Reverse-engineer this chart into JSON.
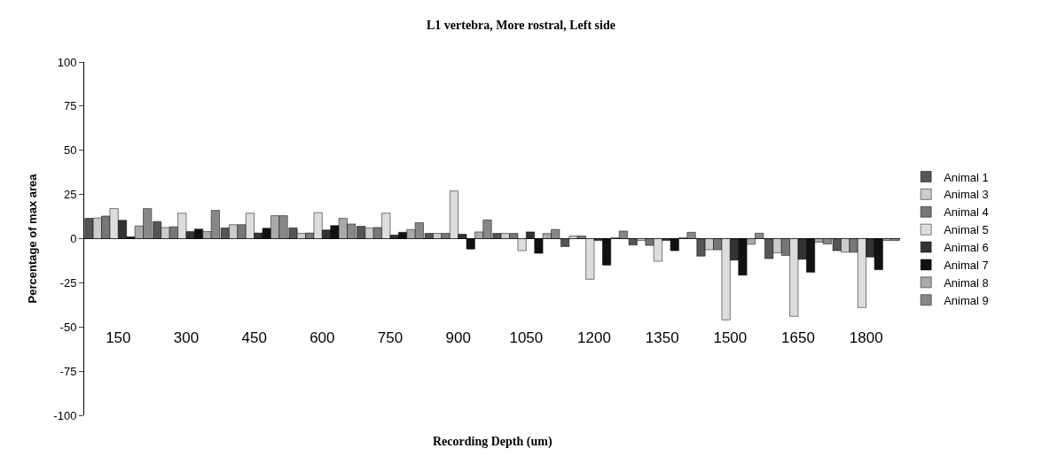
{
  "chart_data": {
    "type": "bar",
    "title": "L1 vertebra, More rostral, Left side",
    "xlabel": "Recording Depth (um)",
    "ylabel": "Percentage of max area",
    "categories": [
      "150",
      "300",
      "450",
      "600",
      "750",
      "900",
      "1050",
      "1200",
      "1350",
      "1500",
      "1650",
      "1800"
    ],
    "series": [
      {
        "name": "Animal 1",
        "color": "#555555",
        "values": [
          11.5,
          9.7,
          6.1,
          6.1,
          7,
          3,
          3,
          -4.5,
          -3.6,
          -9.9,
          -11.3,
          -6.8
        ]
      },
      {
        "name": "Animal 3",
        "color": "#cccccc",
        "values": [
          11.7,
          6.3,
          7.9,
          3,
          6.1,
          3,
          3,
          1.5,
          -1,
          -6.3,
          -8,
          -7.7
        ]
      },
      {
        "name": "Animal 4",
        "color": "#777777",
        "values": [
          12.8,
          6.7,
          7.9,
          3.2,
          6.3,
          3,
          3,
          1.5,
          -3.8,
          -6.3,
          -9.5,
          -7.7
        ]
      },
      {
        "name": "Animal 5",
        "color": "#dddddd",
        "values": [
          17,
          14.4,
          14.4,
          14.7,
          14.4,
          27,
          -6.8,
          -23,
          -12.8,
          -46,
          -44,
          -39
        ]
      },
      {
        "name": "Animal 6",
        "color": "#333333",
        "values": [
          10.4,
          4,
          3.2,
          4.9,
          2,
          2.5,
          3.8,
          -1,
          -1,
          -12.2,
          -11.7,
          -10.4
        ]
      },
      {
        "name": "Animal 7",
        "color": "#111111",
        "values": [
          1,
          5.4,
          5.9,
          7.4,
          3.6,
          -5.9,
          -8.3,
          -15,
          -6.8,
          -20.7,
          -19,
          -17.6
        ]
      },
      {
        "name": "Animal 8",
        "color": "#aaaaaa",
        "values": [
          7.2,
          4,
          13,
          11.5,
          5.2,
          3.8,
          2.9,
          0.5,
          0.5,
          -3.2,
          -2,
          -1
        ]
      },
      {
        "name": "Animal 9",
        "color": "#888888",
        "values": [
          17,
          16,
          13,
          8.3,
          9,
          10.6,
          5.2,
          4.3,
          3.6,
          3.1,
          -3,
          -1
        ]
      }
    ],
    "ylim": [
      -100,
      100
    ],
    "yticks": [
      -100,
      -75,
      -50,
      -25,
      0,
      25,
      50,
      75,
      100
    ],
    "legend": "right"
  }
}
